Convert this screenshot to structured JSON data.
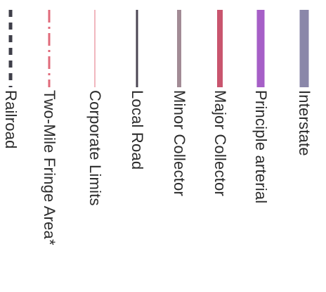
{
  "legend": {
    "items": [
      {
        "label": "Railroad",
        "style": "dashed",
        "color": "#3f3f49",
        "width": 5
      },
      {
        "label": "Two-Mile Fringe Area*",
        "style": "dashdot",
        "color": "#e06a7a",
        "width": 3
      },
      {
        "label": "Corporate Limits",
        "style": "solid",
        "color": "#f1b7bf",
        "width": 2
      },
      {
        "label": "Local Road",
        "style": "solid",
        "color": "#4a4552",
        "width": 3
      },
      {
        "label": "Minor Collector",
        "style": "solid",
        "color": "#a28b95",
        "width": 6
      },
      {
        "label": "Major Collector",
        "style": "solid",
        "color": "#c9556e",
        "width": 8
      },
      {
        "label": "Principle arterial",
        "style": "solid",
        "color": "#a65fc7",
        "width": 11
      },
      {
        "label": "Interstate",
        "style": "solid",
        "color": "#8a87a9",
        "width": 13
      }
    ]
  }
}
